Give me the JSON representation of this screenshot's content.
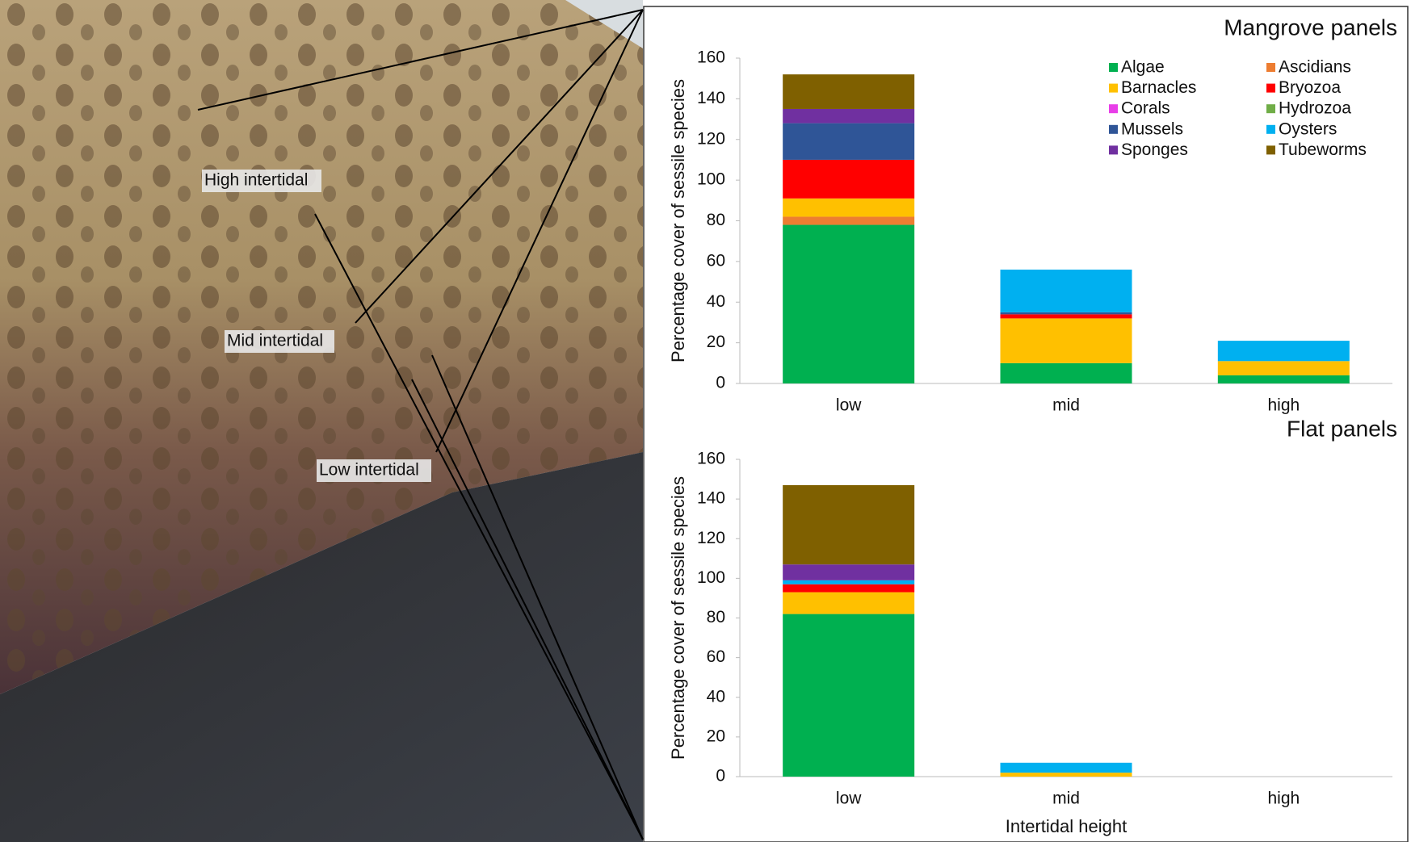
{
  "photo": {
    "labels": [
      "High intertidal",
      "Mid intertidal",
      "Low intertidal"
    ]
  },
  "chart_data": [
    {
      "type": "bar",
      "stacked": true,
      "title": "Mangrove panels",
      "y_label": "Percentage cover of sessile species",
      "categories": [
        "low",
        "mid",
        "high"
      ],
      "ylim": [
        0,
        160
      ],
      "yticks": [
        0,
        20,
        40,
        60,
        80,
        100,
        120,
        140,
        160
      ],
      "legend": "upper right",
      "series": [
        {
          "name": "Algae",
          "color": "#00b050",
          "values": [
            78,
            10,
            4
          ]
        },
        {
          "name": "Ascidians",
          "color": "#ed7d31",
          "values": [
            4,
            0,
            0
          ]
        },
        {
          "name": "Barnacles",
          "color": "#ffc000",
          "values": [
            9,
            22,
            7
          ]
        },
        {
          "name": "Bryozoa",
          "color": "#ff0000",
          "values": [
            19,
            2,
            0
          ]
        },
        {
          "name": "Corals",
          "color": "#e83ee8",
          "values": [
            0,
            0,
            0
          ]
        },
        {
          "name": "Hydrozoa",
          "color": "#70ad47",
          "values": [
            0,
            0,
            0
          ]
        },
        {
          "name": "Mussels",
          "color": "#2f5597",
          "values": [
            18,
            1,
            0
          ]
        },
        {
          "name": "Oysters",
          "color": "#00b0f0",
          "values": [
            0,
            21,
            10
          ]
        },
        {
          "name": "Sponges",
          "color": "#7030a0",
          "values": [
            7,
            0,
            0
          ]
        },
        {
          "name": "Tubeworms",
          "color": "#7f6000",
          "values": [
            17,
            0,
            0
          ]
        }
      ]
    },
    {
      "type": "bar",
      "stacked": true,
      "title": "Flat panels",
      "y_label": "Percentage cover of sessile species",
      "x_label": "Intertidal height",
      "categories": [
        "low",
        "mid",
        "high"
      ],
      "ylim": [
        0,
        160
      ],
      "yticks": [
        0,
        20,
        40,
        60,
        80,
        100,
        120,
        140,
        160
      ],
      "series": [
        {
          "color": "#00b050",
          "values": [
            82,
            0,
            0
          ]
        },
        {
          "color": "#ed7d31",
          "values": [
            0,
            0,
            0
          ]
        },
        {
          "color": "#ffc000",
          "values": [
            11,
            2,
            0
          ]
        },
        {
          "color": "#ff0000",
          "values": [
            4,
            0,
            0
          ]
        },
        {
          "color": "#e83ee8",
          "values": [
            0,
            0,
            0
          ]
        },
        {
          "color": "#70ad47",
          "values": [
            0,
            0,
            0
          ]
        },
        {
          "color": "#2f5597",
          "values": [
            0,
            0,
            0
          ]
        },
        {
          "color": "#00b0f0",
          "values": [
            2,
            5,
            0
          ]
        },
        {
          "color": "#7030a0",
          "values": [
            8,
            0,
            0
          ]
        },
        {
          "color": "#7f6000",
          "values": [
            40,
            0,
            0
          ]
        }
      ]
    }
  ]
}
